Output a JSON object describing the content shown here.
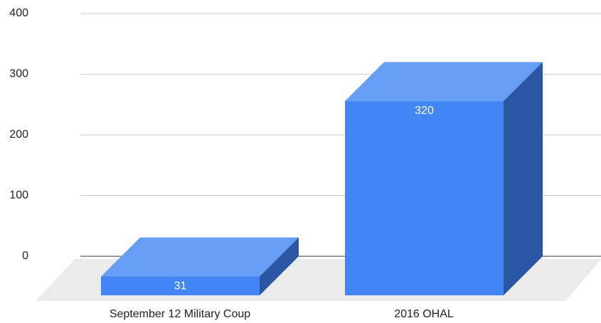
{
  "chart_data": {
    "type": "bar3d",
    "categories": [
      "September 12 Military Coup",
      "2016 OHAL"
    ],
    "values": [
      31,
      320
    ],
    "colors": {
      "front": "#4285f4",
      "top": "#669df6",
      "side": "#2b56a3"
    },
    "ylim": [
      0,
      400
    ],
    "yticks": [
      0,
      100,
      200,
      300,
      400
    ],
    "grid": true
  }
}
